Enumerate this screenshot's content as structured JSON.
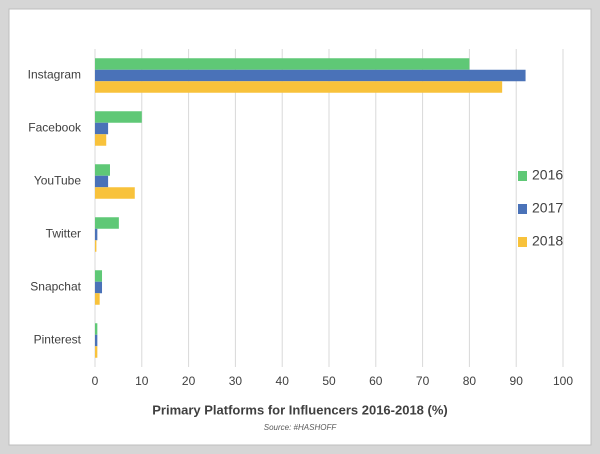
{
  "chart_data": {
    "type": "bar",
    "orientation": "horizontal",
    "title": "Primary Platforms for Influencers 2016-2018 (%)",
    "subtitle": "Source: #HASHOFF",
    "categories": [
      "Instagram",
      "Facebook",
      "YouTube",
      "Twitter",
      "Snapchat",
      "Pinterest"
    ],
    "series": [
      {
        "name": "2016",
        "color": "#5fc876",
        "values": [
          80,
          10,
          3.2,
          5.1,
          1.5,
          0.5
        ]
      },
      {
        "name": "2017",
        "color": "#4a72b8",
        "values": [
          92,
          2.8,
          2.8,
          0.5,
          1.5,
          0.5
        ]
      },
      {
        "name": "2018",
        "color": "#f8c23b",
        "values": [
          87,
          2.4,
          8.5,
          0.3,
          1,
          0.5
        ]
      }
    ],
    "xlim": [
      0,
      100
    ],
    "xticks": [
      0,
      10,
      20,
      30,
      40,
      50,
      60,
      70,
      80,
      90,
      100
    ],
    "grid": true,
    "legend": "right"
  }
}
